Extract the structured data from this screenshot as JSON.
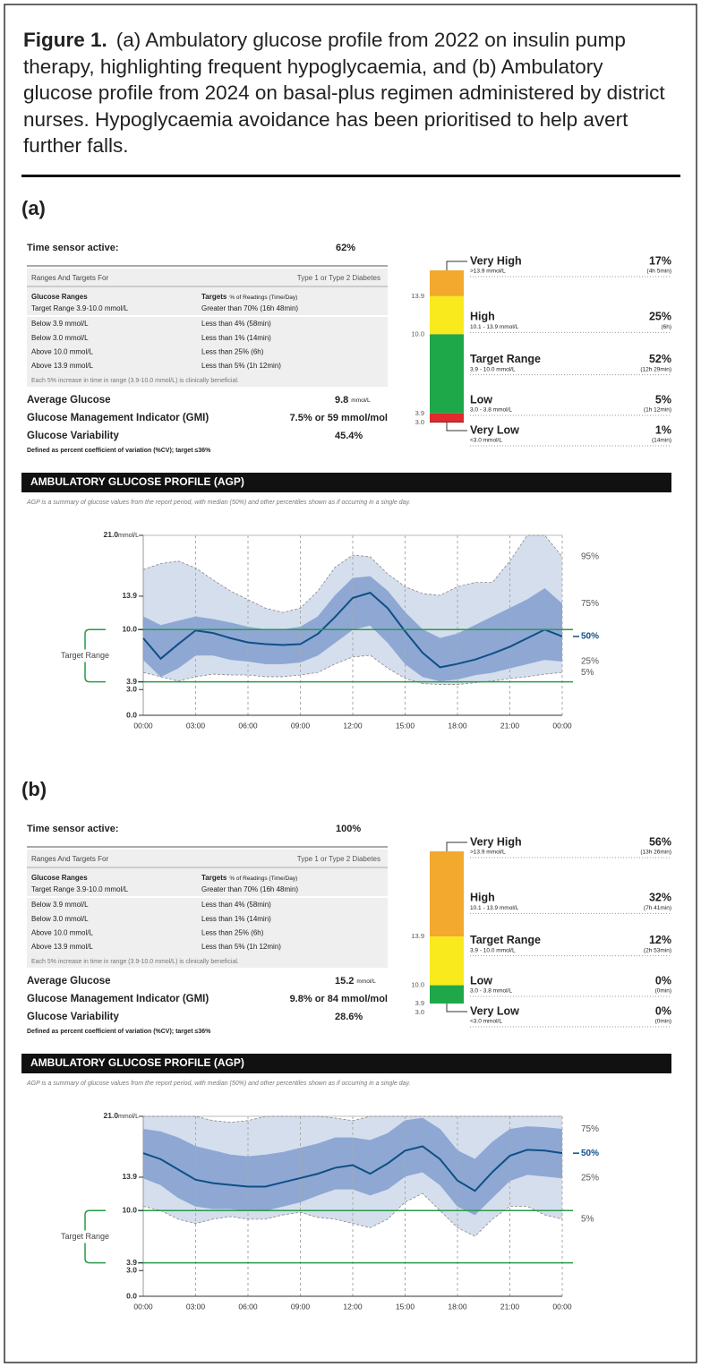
{
  "caption": {
    "label": "Figure 1.",
    "text": "(a) Ambulatory glucose profile from 2022 on insulin pump therapy, highlighting frequent hypoglycaemia, and (b) Ambulatory glucose profile from 2024 on basal-plus regimen administered by district nurses. Hypoglycaemia avoidance has been prioritised to help avert further falls."
  },
  "panels": [
    {
      "label": "(a)",
      "time_sensor_active": {
        "label": "Time sensor active:",
        "value": "62%"
      },
      "targets_table": {
        "header": "Ranges And Targets For",
        "header_right": "Type 1 or Type 2 Diabetes",
        "col1_head": "Glucose Ranges",
        "col2_head": "Targets",
        "col2_head_note": "% of Readings (Time/Day)",
        "rows": [
          [
            "Target Range 3.9-10.0 mmol/L",
            "Greater than 70% (16h 48min)"
          ],
          [
            "Below 3.9 mmol/L",
            "Less than 4% (58min)"
          ],
          [
            "Below 3.0 mmol/L",
            "Less than 1% (14min)"
          ],
          [
            "Above 10.0 mmol/L",
            "Less than 25% (6h)"
          ],
          [
            "Above 13.9 mmol/L",
            "Less than 5% (1h 12min)"
          ]
        ],
        "footnote": "Each 5% increase in time in range (3.9-10.0 mmol/L) is clinically beneficial."
      },
      "metrics": [
        {
          "label": "Average Glucose",
          "value": "9.8",
          "unit": "mmol/L"
        },
        {
          "label": "Glucose Management Indicator (GMI)",
          "value": "7.5% or 59 mmol/mol"
        },
        {
          "label": "Glucose Variability",
          "value": "45.4%"
        }
      ],
      "gv_note": "Defined as percent coefficient of variation (%CV); target ≤36%",
      "tir": {
        "type": "stacked_bar",
        "boundary_labels": [
          "13.9",
          "10.0",
          "3.9",
          "3.0"
        ],
        "segments": [
          {
            "name": "Very High",
            "range": ">13.9 mmol/L",
            "value": 17,
            "value_label": "17%",
            "time": "(4h 5min)",
            "color": "#f2a92e"
          },
          {
            "name": "High",
            "range": "10.1 - 13.9 mmol/L",
            "value": 25,
            "value_label": "25%",
            "time": "(6h)",
            "color": "#f8ea1c"
          },
          {
            "name": "Target Range",
            "range": "3.9 - 10.0 mmol/L",
            "value": 52,
            "value_label": "52%",
            "time": "(12h 29min)",
            "color": "#1fa84a"
          },
          {
            "name": "Low",
            "range": "3.0 - 3.8 mmol/L",
            "value": 5,
            "value_label": "5%",
            "time": "(1h 12min)",
            "color": "#e2292b"
          },
          {
            "name": "Very Low",
            "range": "<3.0 mmol/L",
            "value": 1,
            "value_label": "1%",
            "time": "(14min)",
            "color": "#9e1a22"
          }
        ]
      },
      "agp": {
        "type": "percentile_band",
        "title": "AMBULATORY GLUCOSE PROFILE (AGP)",
        "subtitle": "AGP is a summary of glucose values from the report period, with median (50%) and other percentiles shown as if occurring in a single day.",
        "y_unit": "mmol/L",
        "ylim": [
          0,
          21
        ],
        "yticks": [
          {
            "value": 0,
            "label": "0.0"
          },
          {
            "value": 3,
            "label": "3.0"
          },
          {
            "value": 3.9,
            "label": "3.9"
          },
          {
            "value": 10,
            "label": "10.0"
          },
          {
            "value": 13.9,
            "label": "13.9"
          },
          {
            "value": 21,
            "label": "21.0"
          }
        ],
        "xlim": [
          0,
          24
        ],
        "xticks": [
          {
            "value": 0,
            "label": "00:00"
          },
          {
            "value": 3,
            "label": "03:00"
          },
          {
            "value": 6,
            "label": "06:00"
          },
          {
            "value": 9,
            "label": "09:00"
          },
          {
            "value": 12,
            "label": "12:00"
          },
          {
            "value": 15,
            "label": "15:00"
          },
          {
            "value": 18,
            "label": "18:00"
          },
          {
            "value": 21,
            "label": "21:00"
          },
          {
            "value": 24,
            "label": "00:00"
          }
        ],
        "target_range": {
          "label": "Target Range",
          "low": 3.9,
          "high": 10,
          "color": "#2a9a4a"
        },
        "outer_band_color": "#d5deed",
        "inner_band_color": "#8ea8d3",
        "line_color": "#0f4f86",
        "x": [
          0,
          1,
          2,
          3,
          4,
          5,
          6,
          7,
          8,
          9,
          10,
          11,
          12,
          13,
          14,
          15,
          16,
          17,
          18,
          19,
          20,
          21,
          22,
          23,
          24
        ],
        "series": [
          {
            "name": "95%",
            "values": [
              17.0,
              17.7,
              18.0,
              17.2,
              15.8,
              14.5,
              13.5,
              12.5,
              12.0,
              12.5,
              14.5,
              17.3,
              18.7,
              18.5,
              16.5,
              15.0,
              14.2,
              14.0,
              15.0,
              15.5,
              15.5,
              18.0,
              21.0,
              21.0,
              18.5
            ]
          },
          {
            "name": "75%",
            "values": [
              11.5,
              10.5,
              11.0,
              11.5,
              11.2,
              10.8,
              10.3,
              10.0,
              10.0,
              10.3,
              11.5,
              14.0,
              16.0,
              16.2,
              14.5,
              12.0,
              10.0,
              9.0,
              9.5,
              10.5,
              11.5,
              12.5,
              13.5,
              14.8,
              13.0
            ]
          },
          {
            "name": "50%",
            "values": [
              9.0,
              6.6,
              8.3,
              9.9,
              9.6,
              9.0,
              8.5,
              8.3,
              8.2,
              8.3,
              9.5,
              11.5,
              13.7,
              14.3,
              12.5,
              9.8,
              7.3,
              5.6,
              6.0,
              6.5,
              7.2,
              8.0,
              9.0,
              10.0,
              9.2
            ]
          },
          {
            "name": "25%",
            "values": [
              6.5,
              4.5,
              5.5,
              7.0,
              7.0,
              6.5,
              6.3,
              6.0,
              6.0,
              6.2,
              7.0,
              8.5,
              10.0,
              10.5,
              8.5,
              6.0,
              4.5,
              4.0,
              4.2,
              4.7,
              5.0,
              5.5,
              6.0,
              6.5,
              6.3
            ]
          },
          {
            "name": "5%",
            "values": [
              5.0,
              4.5,
              4.0,
              4.5,
              4.8,
              4.7,
              4.7,
              4.5,
              4.5,
              4.7,
              5.0,
              6.0,
              6.8,
              7.0,
              5.5,
              4.3,
              3.7,
              3.6,
              3.6,
              3.8,
              4.0,
              4.3,
              4.5,
              4.8,
              5.0
            ]
          }
        ]
      }
    },
    {
      "label": "(b)",
      "time_sensor_active": {
        "label": "Time sensor active:",
        "value": "100%"
      },
      "targets_table": {
        "header": "Ranges And Targets For",
        "header_right": "Type 1 or Type 2 Diabetes",
        "col1_head": "Glucose Ranges",
        "col2_head": "Targets",
        "col2_head_note": "% of Readings (Time/Day)",
        "rows": [
          [
            "Target Range 3.9-10.0 mmol/L",
            "Greater than 70% (16h 48min)"
          ],
          [
            "Below 3.9 mmol/L",
            "Less than 4% (58min)"
          ],
          [
            "Below 3.0 mmol/L",
            "Less than 1% (14min)"
          ],
          [
            "Above 10.0 mmol/L",
            "Less than 25% (6h)"
          ],
          [
            "Above 13.9 mmol/L",
            "Less than 5% (1h 12min)"
          ]
        ],
        "footnote": "Each 5% increase in time in range (3.9-10.0 mmol/L) is clinically beneficial."
      },
      "metrics": [
        {
          "label": "Average Glucose",
          "value": "15.2",
          "unit": "mmol/L"
        },
        {
          "label": "Glucose Management Indicator (GMI)",
          "value": "9.8% or 84 mmol/mol"
        },
        {
          "label": "Glucose Variability",
          "value": "28.6%"
        }
      ],
      "gv_note": "Defined as percent coefficient of variation (%CV); target ≤36%",
      "tir": {
        "type": "stacked_bar",
        "boundary_labels": [
          "13.9",
          "10.0",
          "3.9",
          "3.0"
        ],
        "segments": [
          {
            "name": "Very High",
            "range": ">13.9 mmol/L",
            "value": 56,
            "value_label": "56%",
            "time": "(13h 26min)",
            "color": "#f2a92e"
          },
          {
            "name": "High",
            "range": "10.1 - 13.9 mmol/L",
            "value": 32,
            "value_label": "32%",
            "time": "(7h 41min)",
            "color": "#f8ea1c"
          },
          {
            "name": "Target Range",
            "range": "3.9 - 10.0 mmol/L",
            "value": 12,
            "value_label": "12%",
            "time": "(2h 53min)",
            "color": "#1fa84a"
          },
          {
            "name": "Low",
            "range": "3.0 - 3.8 mmol/L",
            "value": 0,
            "value_label": "0%",
            "time": "(0min)",
            "color": "#e2292b"
          },
          {
            "name": "Very Low",
            "range": "<3.0 mmol/L",
            "value": 0,
            "value_label": "0%",
            "time": "(0min)",
            "color": "#9e1a22"
          }
        ]
      },
      "agp": {
        "type": "percentile_band",
        "title": "AMBULATORY GLUCOSE PROFILE (AGP)",
        "subtitle": "AGP is a summary of glucose values from the report period, with median (50%) and other percentiles shown as if occurring in a single day.",
        "y_unit": "mmol/L",
        "ylim": [
          0,
          21
        ],
        "yticks": [
          {
            "value": 0,
            "label": "0.0"
          },
          {
            "value": 3,
            "label": "3.0"
          },
          {
            "value": 3.9,
            "label": "3.9"
          },
          {
            "value": 10,
            "label": "10.0"
          },
          {
            "value": 13.9,
            "label": "13.9"
          },
          {
            "value": 21,
            "label": "21.0"
          }
        ],
        "xlim": [
          0,
          24
        ],
        "xticks": [
          {
            "value": 0,
            "label": "00:00"
          },
          {
            "value": 3,
            "label": "03:00"
          },
          {
            "value": 6,
            "label": "06:00"
          },
          {
            "value": 9,
            "label": "09:00"
          },
          {
            "value": 12,
            "label": "12:00"
          },
          {
            "value": 15,
            "label": "15:00"
          },
          {
            "value": 18,
            "label": "18:00"
          },
          {
            "value": 21,
            "label": "21:00"
          },
          {
            "value": 24,
            "label": "00:00"
          }
        ],
        "target_range": {
          "label": "Target Range",
          "low": 3.9,
          "high": 10,
          "color": "#2a9a4a"
        },
        "outer_band_color": "#d5deed",
        "inner_band_color": "#8ea8d3",
        "line_color": "#0f4f86",
        "x": [
          0,
          1,
          2,
          3,
          4,
          5,
          6,
          7,
          8,
          9,
          10,
          11,
          12,
          13,
          14,
          15,
          16,
          17,
          18,
          19,
          20,
          21,
          22,
          23,
          24
        ],
        "series": [
          {
            "values": [
              21,
              21,
              21,
              21,
              20.5,
              20.3,
              20.5,
              21,
              21,
              21,
              21,
              20.8,
              20.5,
              21,
              21,
              21,
              21,
              21,
              21,
              21,
              21,
              21,
              21,
              21,
              21
            ]
          },
          {
            "name": "75%",
            "values": [
              19.5,
              19.2,
              18.5,
              17.5,
              17.0,
              16.5,
              16.3,
              16.5,
              16.8,
              17.3,
              17.8,
              18.5,
              18.5,
              18.2,
              19.0,
              20.5,
              20.8,
              19.5,
              17.0,
              16.0,
              18.0,
              19.5,
              19.8,
              19.7,
              19.5
            ]
          },
          {
            "name": "50%",
            "values": [
              16.7,
              16.0,
              14.8,
              13.6,
              13.2,
              13.0,
              12.8,
              12.8,
              13.3,
              13.8,
              14.3,
              15.0,
              15.3,
              14.3,
              15.5,
              17.0,
              17.5,
              16.0,
              13.5,
              12.3,
              14.5,
              16.4,
              17.1,
              17.0,
              16.7
            ]
          },
          {
            "name": "25%",
            "values": [
              13.8,
              13.0,
              11.5,
              10.5,
              10.2,
              10.2,
              10.0,
              10.0,
              10.5,
              11.0,
              11.8,
              12.5,
              12.5,
              11.8,
              12.5,
              14.0,
              14.5,
              13.0,
              10.5,
              9.5,
              11.5,
              13.5,
              14.2,
              14.0,
              13.8
            ]
          },
          {
            "name": "5%",
            "values": [
              10.5,
              10.0,
              9.0,
              8.5,
              9.0,
              9.3,
              9.0,
              9.0,
              9.5,
              9.8,
              9.2,
              9.0,
              8.5,
              8.0,
              9.0,
              11.0,
              12.0,
              10.0,
              8.0,
              7.0,
              9.0,
              10.5,
              10.5,
              9.5,
              9.0
            ]
          }
        ]
      }
    }
  ]
}
